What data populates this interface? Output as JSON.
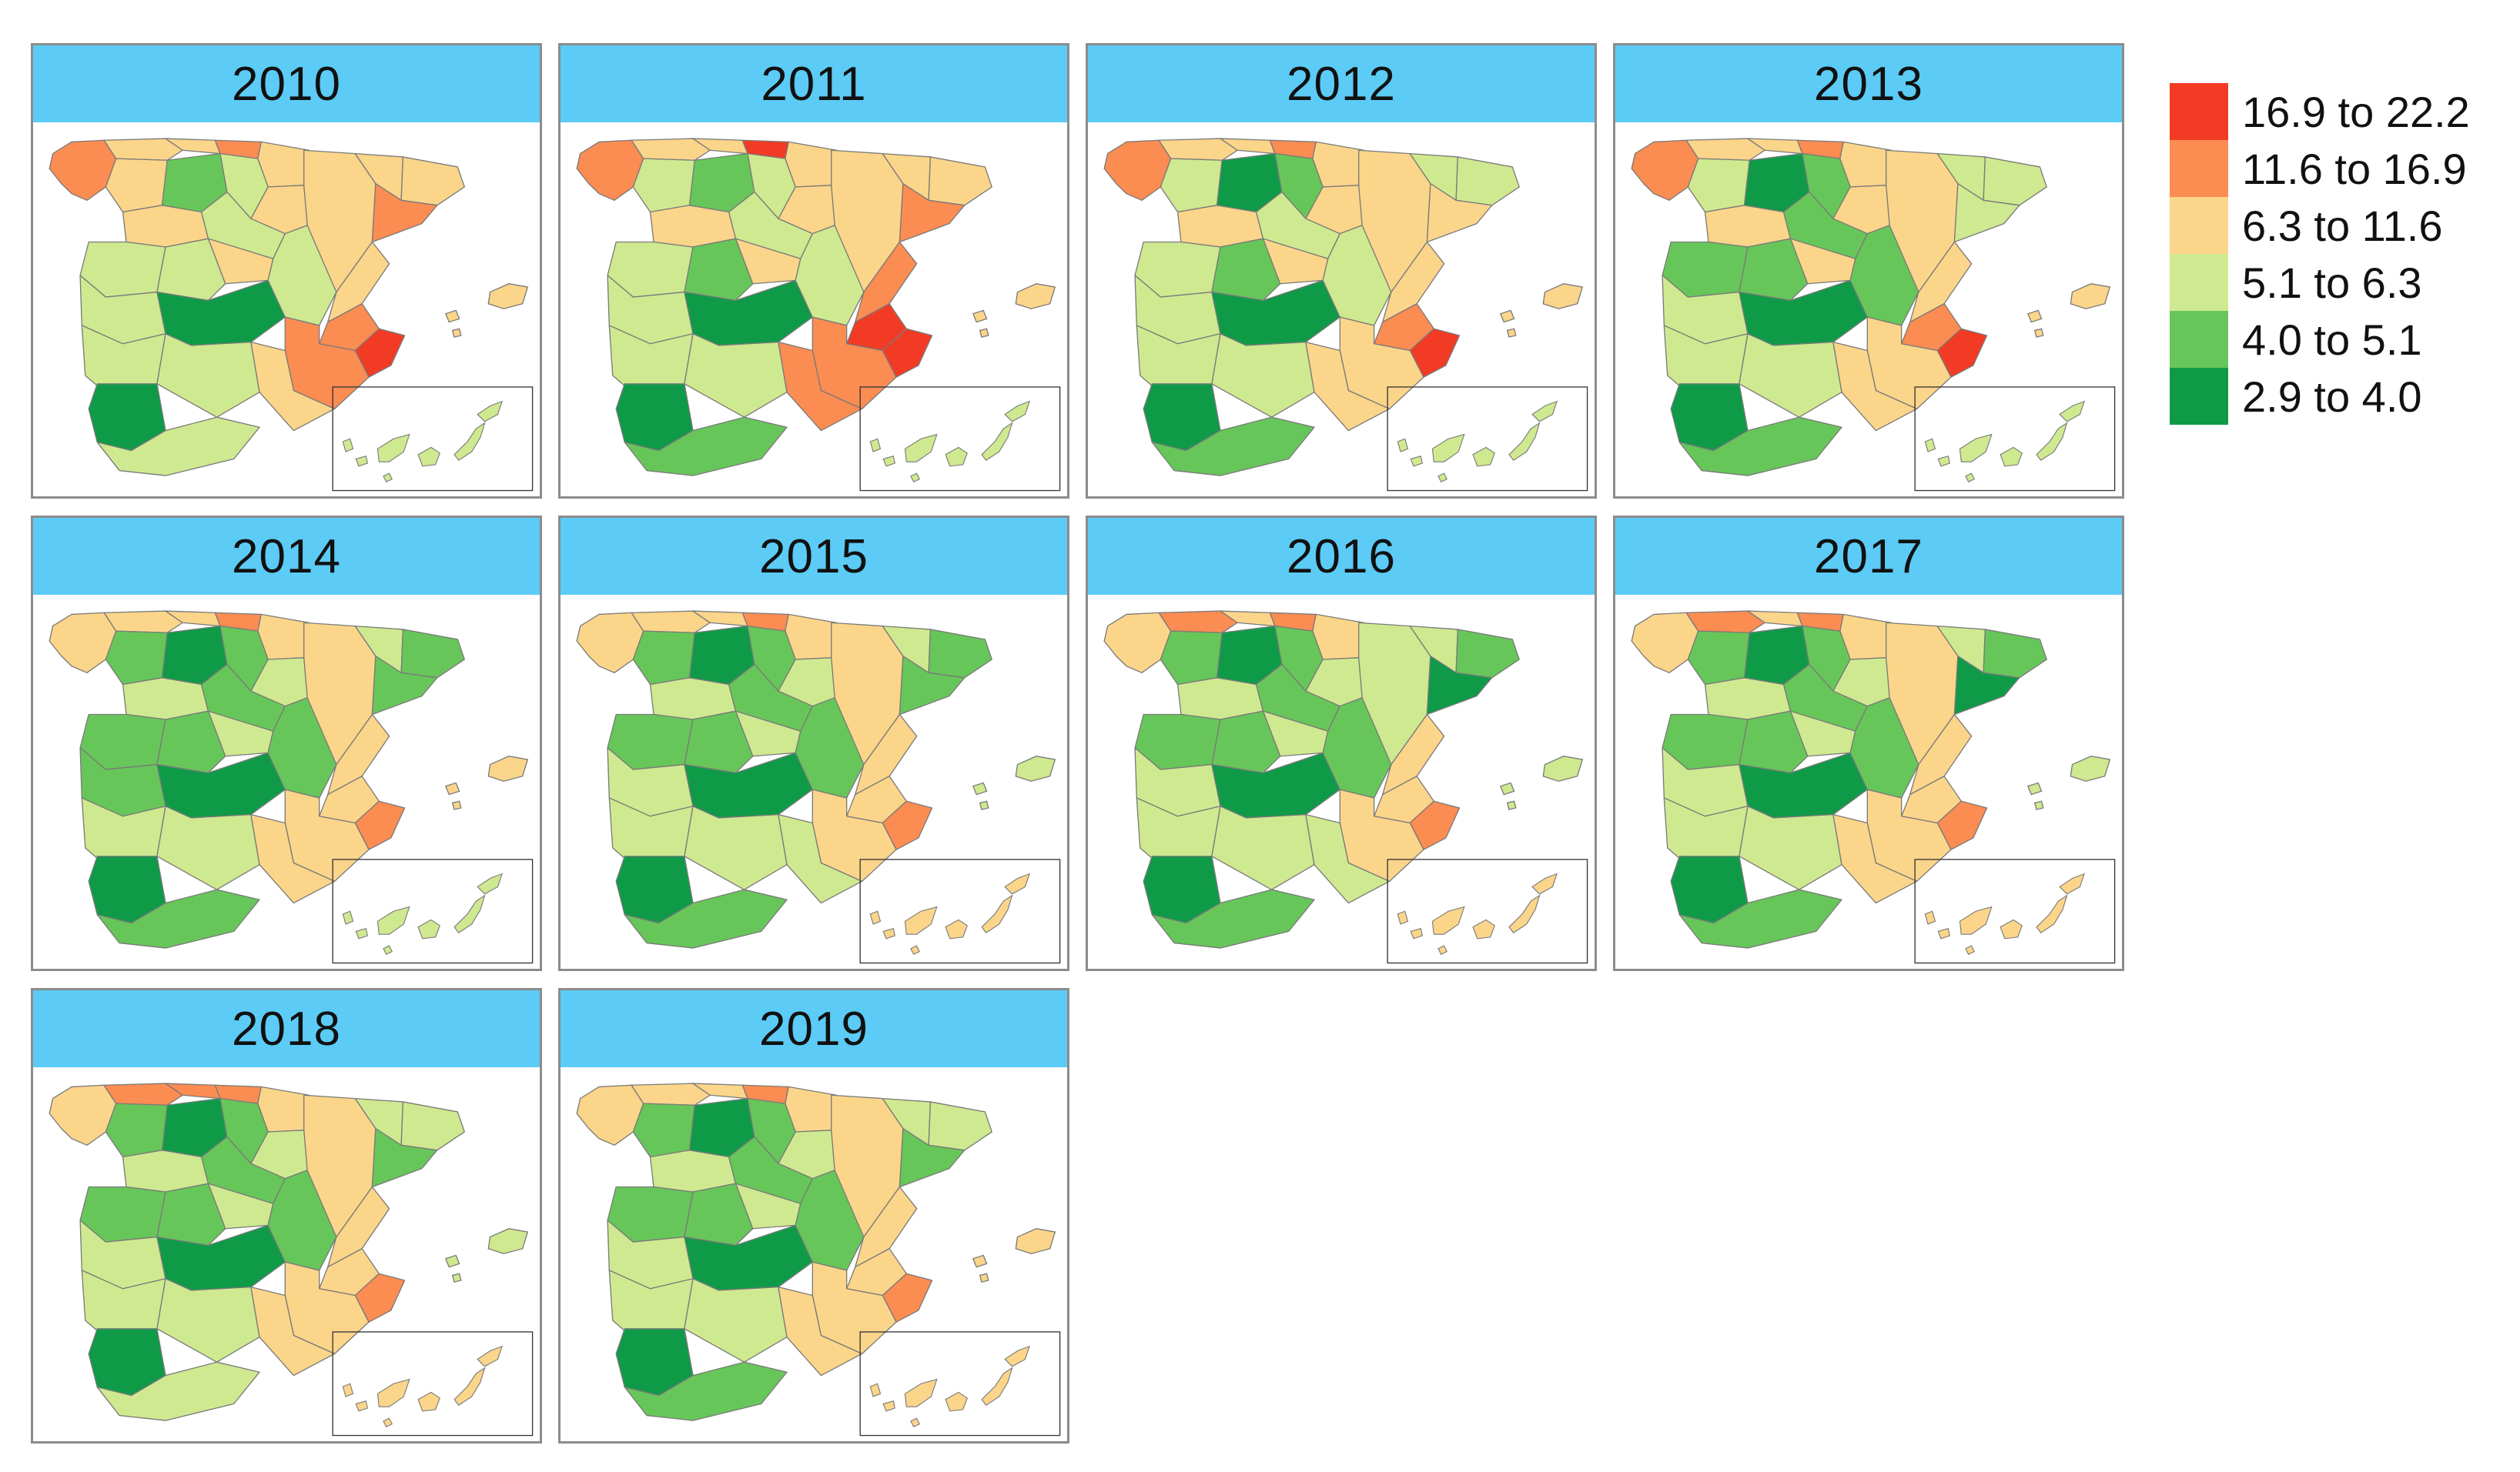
{
  "legend": {
    "classes": [
      {
        "label": "16.9 to 22.2",
        "color": "#f23b24"
      },
      {
        "label": "11.6 to 16.9",
        "color": "#fb8c52"
      },
      {
        "label": "6.3 to 11.6",
        "color": "#fbd58a"
      },
      {
        "label": "5.1 to 6.3",
        "color": "#cfe990"
      },
      {
        "label": "4.0 to 5.1",
        "color": "#67c659"
      },
      {
        "label": "2.9 to 4.0",
        "color": "#0f9a48"
      }
    ]
  },
  "maps": [
    {
      "year": "2010",
      "classes": {
        "galicia": 1,
        "asturias": 2,
        "cantabria": 2,
        "basque": 1,
        "navarre": 2,
        "aragon": 2,
        "catalonia_w": 2,
        "catalonia_e": 2,
        "catalonia_coast": 1,
        "leon_w": 2,
        "leon_c": 4,
        "leon_e": 3,
        "rioja": 2,
        "castile_n": 2,
        "castile_s": 3,
        "madrid": 2,
        "extremadura_n": 3,
        "extremadura_s": 3,
        "lamancha_w": 3,
        "lamancha_c": 5,
        "lamancha_e": 3,
        "valencia_n": 2,
        "valencia_s": 1,
        "alicante": 0,
        "murcia": 1,
        "andalusia_w": 3,
        "andalusia_c": 3,
        "andalusia_e": 2,
        "sevilla": 5,
        "cadiz": 3,
        "baleares": 2,
        "canaries_w": 3,
        "canaries_e": 3
      }
    },
    {
      "year": "2011",
      "classes": {
        "galicia": 1,
        "asturias": 2,
        "cantabria": 2,
        "basque": 0,
        "navarre": 2,
        "aragon": 2,
        "catalonia_w": 2,
        "catalonia_e": 2,
        "catalonia_coast": 1,
        "leon_w": 3,
        "leon_c": 4,
        "leon_e": 3,
        "rioja": 2,
        "castile_n": 2,
        "castile_s": 3,
        "madrid": 2,
        "extremadura_n": 3,
        "extremadura_s": 3,
        "lamancha_w": 4,
        "lamancha_c": 5,
        "lamancha_e": 3,
        "valencia_n": 1,
        "valencia_s": 0,
        "alicante": 0,
        "murcia": 1,
        "andalusia_w": 3,
        "andalusia_c": 3,
        "andalusia_e": 1,
        "sevilla": 5,
        "cadiz": 4,
        "baleares": 2,
        "canaries_w": 3,
        "canaries_e": 3
      }
    },
    {
      "year": "2012",
      "classes": {
        "galicia": 1,
        "asturias": 2,
        "cantabria": 2,
        "basque": 1,
        "navarre": 2,
        "aragon": 2,
        "catalonia_w": 3,
        "catalonia_e": 3,
        "catalonia_coast": 2,
        "leon_w": 3,
        "leon_c": 5,
        "leon_e": 4,
        "rioja": 2,
        "castile_n": 2,
        "castile_s": 3,
        "madrid": 2,
        "extremadura_n": 3,
        "extremadura_s": 3,
        "lamancha_w": 4,
        "lamancha_c": 5,
        "lamancha_e": 3,
        "valencia_n": 2,
        "valencia_s": 1,
        "alicante": 0,
        "murcia": 2,
        "andalusia_w": 3,
        "andalusia_c": 3,
        "andalusia_e": 2,
        "sevilla": 5,
        "cadiz": 4,
        "baleares": 2,
        "canaries_w": 3,
        "canaries_e": 3
      }
    },
    {
      "year": "2013",
      "classes": {
        "galicia": 1,
        "asturias": 2,
        "cantabria": 2,
        "basque": 1,
        "navarre": 2,
        "aragon": 2,
        "catalonia_w": 3,
        "catalonia_e": 3,
        "catalonia_coast": 3,
        "leon_w": 3,
        "leon_c": 5,
        "leon_e": 4,
        "rioja": 2,
        "castile_n": 2,
        "castile_s": 4,
        "madrid": 2,
        "extremadura_n": 4,
        "extremadura_s": 3,
        "lamancha_w": 4,
        "lamancha_c": 5,
        "lamancha_e": 4,
        "valencia_n": 2,
        "valencia_s": 1,
        "alicante": 0,
        "murcia": 2,
        "andalusia_w": 3,
        "andalusia_c": 3,
        "andalusia_e": 2,
        "sevilla": 5,
        "cadiz": 4,
        "baleares": 2,
        "canaries_w": 3,
        "canaries_e": 3
      }
    },
    {
      "year": "2014",
      "classes": {
        "galicia": 2,
        "asturias": 2,
        "cantabria": 2,
        "basque": 1,
        "navarre": 2,
        "aragon": 2,
        "catalonia_w": 3,
        "catalonia_e": 4,
        "catalonia_coast": 4,
        "leon_w": 4,
        "leon_c": 5,
        "leon_e": 4,
        "rioja": 3,
        "castile_n": 3,
        "castile_s": 4,
        "madrid": 3,
        "extremadura_n": 4,
        "extremadura_s": 4,
        "lamancha_w": 4,
        "lamancha_c": 5,
        "lamancha_e": 4,
        "valencia_n": 2,
        "valencia_s": 2,
        "alicante": 1,
        "murcia": 2,
        "andalusia_w": 3,
        "andalusia_c": 3,
        "andalusia_e": 2,
        "sevilla": 5,
        "cadiz": 4,
        "baleares": 2,
        "canaries_w": 3,
        "canaries_e": 3
      }
    },
    {
      "year": "2015",
      "classes": {
        "galicia": 2,
        "asturias": 2,
        "cantabria": 2,
        "basque": 1,
        "navarre": 2,
        "aragon": 2,
        "catalonia_w": 3,
        "catalonia_e": 4,
        "catalonia_coast": 4,
        "leon_w": 4,
        "leon_c": 5,
        "leon_e": 4,
        "rioja": 3,
        "castile_n": 3,
        "castile_s": 4,
        "madrid": 3,
        "extremadura_n": 4,
        "extremadura_s": 3,
        "lamancha_w": 4,
        "lamancha_c": 5,
        "lamancha_e": 4,
        "valencia_n": 2,
        "valencia_s": 2,
        "alicante": 1,
        "murcia": 2,
        "andalusia_w": 3,
        "andalusia_c": 3,
        "andalusia_e": 3,
        "sevilla": 5,
        "cadiz": 4,
        "baleares": 3,
        "canaries_w": 2,
        "canaries_e": 2
      }
    },
    {
      "year": "2016",
      "classes": {
        "galicia": 2,
        "asturias": 1,
        "cantabria": 2,
        "basque": 1,
        "navarre": 2,
        "aragon": 3,
        "catalonia_w": 3,
        "catalonia_e": 4,
        "catalonia_coast": 5,
        "leon_w": 4,
        "leon_c": 5,
        "leon_e": 4,
        "rioja": 3,
        "castile_n": 3,
        "castile_s": 4,
        "madrid": 3,
        "extremadura_n": 4,
        "extremadura_s": 3,
        "lamancha_w": 4,
        "lamancha_c": 5,
        "lamancha_e": 4,
        "valencia_n": 2,
        "valencia_s": 2,
        "alicante": 1,
        "murcia": 2,
        "andalusia_w": 3,
        "andalusia_c": 3,
        "andalusia_e": 3,
        "sevilla": 5,
        "cadiz": 4,
        "baleares": 3,
        "canaries_w": 2,
        "canaries_e": 2
      }
    },
    {
      "year": "2017",
      "classes": {
        "galicia": 2,
        "asturias": 1,
        "cantabria": 2,
        "basque": 1,
        "navarre": 2,
        "aragon": 2,
        "catalonia_w": 3,
        "catalonia_e": 4,
        "catalonia_coast": 5,
        "leon_w": 4,
        "leon_c": 5,
        "leon_e": 4,
        "rioja": 3,
        "castile_n": 3,
        "castile_s": 4,
        "madrid": 3,
        "extremadura_n": 4,
        "extremadura_s": 3,
        "lamancha_w": 4,
        "lamancha_c": 5,
        "lamancha_e": 4,
        "valencia_n": 2,
        "valencia_s": 2,
        "alicante": 1,
        "murcia": 2,
        "andalusia_w": 3,
        "andalusia_c": 3,
        "andalusia_e": 2,
        "sevilla": 5,
        "cadiz": 4,
        "baleares": 3,
        "canaries_w": 2,
        "canaries_e": 2
      }
    },
    {
      "year": "2018",
      "classes": {
        "galicia": 2,
        "asturias": 1,
        "cantabria": 1,
        "basque": 1,
        "navarre": 2,
        "aragon": 2,
        "catalonia_w": 3,
        "catalonia_e": 3,
        "catalonia_coast": 4,
        "leon_w": 4,
        "leon_c": 5,
        "leon_e": 4,
        "rioja": 3,
        "castile_n": 3,
        "castile_s": 4,
        "madrid": 3,
        "extremadura_n": 4,
        "extremadura_s": 3,
        "lamancha_w": 4,
        "lamancha_c": 5,
        "lamancha_e": 4,
        "valencia_n": 2,
        "valencia_s": 2,
        "alicante": 1,
        "murcia": 2,
        "andalusia_w": 3,
        "andalusia_c": 3,
        "andalusia_e": 2,
        "sevilla": 5,
        "cadiz": 3,
        "baleares": 3,
        "canaries_w": 2,
        "canaries_e": 2
      }
    },
    {
      "year": "2019",
      "classes": {
        "galicia": 2,
        "asturias": 2,
        "cantabria": 2,
        "basque": 1,
        "navarre": 2,
        "aragon": 2,
        "catalonia_w": 3,
        "catalonia_e": 3,
        "catalonia_coast": 4,
        "leon_w": 4,
        "leon_c": 5,
        "leon_e": 4,
        "rioja": 3,
        "castile_n": 3,
        "castile_s": 4,
        "madrid": 3,
        "extremadura_n": 4,
        "extremadura_s": 3,
        "lamancha_w": 4,
        "lamancha_c": 5,
        "lamancha_e": 4,
        "valencia_n": 2,
        "valencia_s": 2,
        "alicante": 1,
        "murcia": 2,
        "andalusia_w": 3,
        "andalusia_c": 3,
        "andalusia_e": 2,
        "sevilla": 5,
        "cadiz": 4,
        "baleares": 2,
        "canaries_w": 2,
        "canaries_e": 2
      }
    }
  ]
}
